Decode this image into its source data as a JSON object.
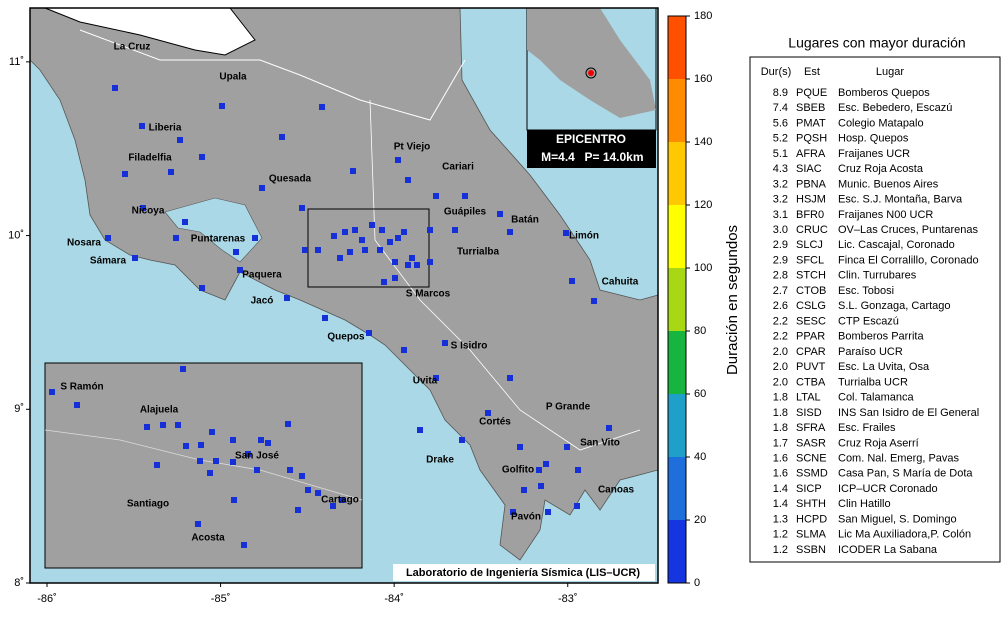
{
  "map": {
    "xlim": [
      -86.098,
      -82.48
    ],
    "ylim": [
      8,
      11.31
    ],
    "xticks": [
      {
        "value": -86,
        "label": "-86˚"
      },
      {
        "value": -85,
        "label": "-85˚"
      },
      {
        "value": -84,
        "label": "-84˚"
      },
      {
        "value": -83,
        "label": "-83˚"
      }
    ],
    "yticks": [
      {
        "value": 8,
        "label": "8˚"
      },
      {
        "value": 9,
        "label": "9˚"
      },
      {
        "value": 10,
        "label": "10˚"
      },
      {
        "value": 11,
        "label": "11˚"
      }
    ],
    "places": [
      "La Cruz",
      "Upala",
      "Liberia",
      "Filadelfia",
      "Nicoya",
      "Nosara",
      "Sámara",
      "Puntarenas",
      "Paquera",
      "Jacó",
      "Quepos",
      "Pt Viejo",
      "Quesada",
      "Cariari",
      "Guápiles",
      "Batán",
      "Limón",
      "Turrialba",
      "Cahuita",
      "S Marcos",
      "S Isidro",
      "Uvita",
      "P Grande",
      "Cortés",
      "San Vito",
      "Drake",
      "Golfito",
      "Canoas",
      "Pavón"
    ],
    "inset_places": [
      "S Ramón",
      "Alajuela",
      "San José",
      "Santiago",
      "Cartago",
      "Acosta"
    ],
    "epicenter": {
      "title": "EPICENTRO",
      "magnitude": "M=4.4",
      "depth": "P= 14.0km"
    },
    "credit": "Laboratorio de Ingeniería Sísmica (LIS–UCR)"
  },
  "colorbar": {
    "label": "Duración en segundos",
    "clim": [
      0,
      180
    ],
    "ticks": [
      0,
      20,
      40,
      60,
      80,
      100,
      120,
      140,
      160,
      180
    ],
    "colors": [
      "#1535e0",
      "#1e6edc",
      "#1ea0c8",
      "#18b440",
      "#a8d814",
      "#ffff00",
      "#ffc800",
      "#ff8c00",
      "#ff5000",
      "#e80000"
    ]
  },
  "table": {
    "title": "Lugares con mayor duración",
    "columns": [
      "Dur(s)",
      "Est",
      "Lugar"
    ],
    "rows": [
      [
        "8.9",
        "PQUE",
        "Bomberos Quepos"
      ],
      [
        "7.4",
        "SBEB",
        "Esc. Bebedero, Escazú"
      ],
      [
        "5.6",
        "PMAT",
        "Colegio Matapalo"
      ],
      [
        "5.2",
        "PQSH",
        "Hosp. Quepos"
      ],
      [
        "5.1",
        "AFRA",
        "Fraijanes UCR"
      ],
      [
        "4.3",
        "SIAC",
        "Cruz Roja Acosta"
      ],
      [
        "3.2",
        "PBNA",
        "Munic. Buenos Aires"
      ],
      [
        "3.2",
        "HSJM",
        "Esc. S.J. Montaña, Barva"
      ],
      [
        "3.1",
        "BFR0",
        "Fraijanes N00 UCR"
      ],
      [
        "3.0",
        "CRUC",
        "OV–Las Cruces, Puntarenas"
      ],
      [
        "2.9",
        "SLCJ",
        "Lic. Cascajal, Coronado"
      ],
      [
        "2.9",
        "SFCL",
        "Finca El Corralillo, Coronado"
      ],
      [
        "2.8",
        "STCH",
        "Clin. Turrubares"
      ],
      [
        "2.7",
        "CTOB",
        "Esc. Tobosi"
      ],
      [
        "2.6",
        "CSLG",
        "S.L. Gonzaga, Cartago"
      ],
      [
        "2.2",
        "SESC",
        "CTP Escazú"
      ],
      [
        "2.2",
        "PPAR",
        "Bomberos Parrita"
      ],
      [
        "2.0",
        "CPAR",
        "Paraíso UCR"
      ],
      [
        "2.0",
        "PUVT",
        "Esc. La Uvita, Osa"
      ],
      [
        "2.0",
        "CTBA",
        "Turrialba UCR"
      ],
      [
        "1.8",
        "LTAL",
        "Col. Talamanca"
      ],
      [
        "1.8",
        "SISD",
        "INS San Isidro de El General"
      ],
      [
        "1.8",
        "SFRA",
        "Esc. Frailes"
      ],
      [
        "1.7",
        "SASR",
        "Cruz Roja Aserrí"
      ],
      [
        "1.6",
        "SCNE",
        "Com. Nal. Emerg, Pavas"
      ],
      [
        "1.6",
        "SSMD",
        "Casa Pan, S María de Dota"
      ],
      [
        "1.4",
        "SICP",
        "ICP–UCR Coronado"
      ],
      [
        "1.4",
        "SHTH",
        "Clin Hatillo"
      ],
      [
        "1.3",
        "HCPD",
        "San Miguel, S. Domingo"
      ],
      [
        "1.2",
        "SLMA",
        "Lic Ma Auxiliadora,P. Colón"
      ],
      [
        "1.2",
        "SSBN",
        "ICODER La Sabana"
      ]
    ]
  }
}
